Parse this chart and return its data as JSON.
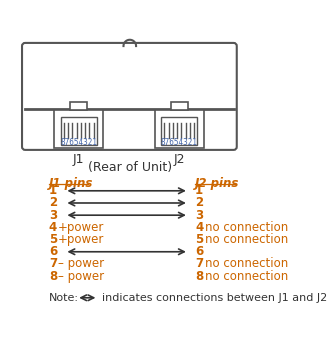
{
  "bg_color": "#ffffff",
  "text_color": "#cc6600",
  "arrow_color": "#333333",
  "label_color": "#333333",
  "connector_color": "#555555",
  "title_rear": "(Rear of Unit)",
  "j1_label": "J1",
  "j2_label": "J2",
  "j1_pins_label": "J1 pins",
  "j2_pins_label": "J2 pins",
  "pin_number_color": "#4466aa",
  "pin_rows": [
    {
      "pin": "1",
      "j1_extra": "",
      "j2_extra": "",
      "has_arrow": true
    },
    {
      "pin": "2",
      "j1_extra": "",
      "j2_extra": "",
      "has_arrow": true
    },
    {
      "pin": "3",
      "j1_extra": "",
      "j2_extra": "",
      "has_arrow": true
    },
    {
      "pin": "4",
      "j1_extra": "+power",
      "j2_extra": "no connection",
      "has_arrow": false
    },
    {
      "pin": "5",
      "j1_extra": "+power",
      "j2_extra": "no connection",
      "has_arrow": false
    },
    {
      "pin": "6",
      "j1_extra": "",
      "j2_extra": "",
      "has_arrow": true
    },
    {
      "pin": "7",
      "j1_extra": "– power",
      "j2_extra": "no connection",
      "has_arrow": false
    },
    {
      "pin": "8",
      "j1_extra": "– power",
      "j2_extra": "no connection",
      "has_arrow": false
    }
  ],
  "note_text": "indicates connections between J1 and J2",
  "note_prefix": "Note:",
  "pin_number_label": "87654321"
}
